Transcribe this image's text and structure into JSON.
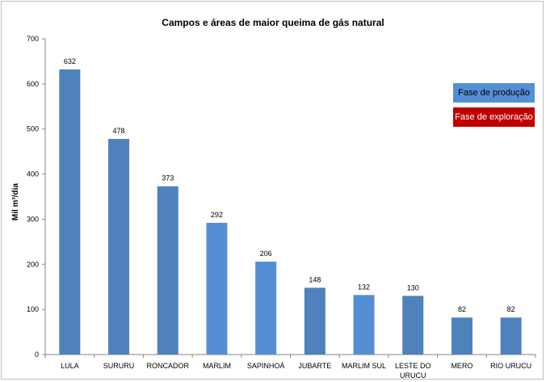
{
  "chart_data": {
    "type": "bar",
    "title": "Campos e áreas de maior queima de gás natural",
    "ylabel": "Mil m³/dia",
    "xlabel": "",
    "ylim": [
      0,
      700
    ],
    "yticks": [
      0,
      100,
      200,
      300,
      400,
      500,
      600,
      700
    ],
    "grid": false,
    "categories": [
      [
        "LULA"
      ],
      [
        "SURURU"
      ],
      [
        "RONCADOR"
      ],
      [
        "MARLIM"
      ],
      [
        "SAPINHOÁ"
      ],
      [
        "JUBARTE"
      ],
      [
        "MARLIM SUL"
      ],
      [
        "LESTE DO",
        "URUCU"
      ],
      [
        "MERO"
      ],
      [
        "RIO URUCU"
      ]
    ],
    "values": [
      632,
      478,
      373,
      292,
      206,
      148,
      132,
      130,
      82,
      82
    ],
    "bar_colors": [
      "#4f81bd",
      "#4f81bd",
      "#4f81bd",
      "#558ed5",
      "#558ed5",
      "#4f81bd",
      "#558ed5",
      "#4f81bd",
      "#4f81bd",
      "#4f81bd"
    ],
    "legend": {
      "placement": "right",
      "items": [
        {
          "label": "Fase de produção",
          "color": "#558ed5",
          "text_color": "#000000"
        },
        {
          "label": "Fase de exploração",
          "color": "#c00000",
          "text_color": "#ffffff"
        }
      ]
    }
  }
}
